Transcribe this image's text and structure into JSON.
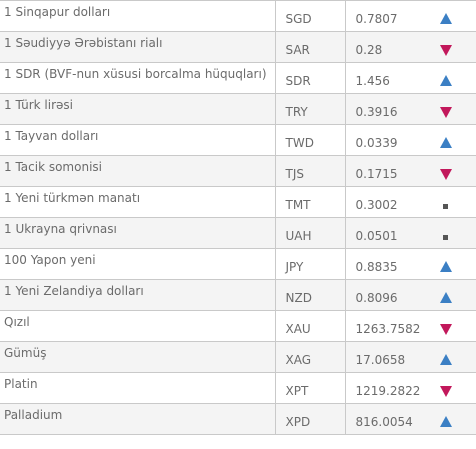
{
  "colors": {
    "up": "#3b7fc4",
    "down": "#c2185b",
    "neutral": "#555555"
  },
  "rows": [
    {
      "name": "1 Sinqapur dolları",
      "code": "SGD",
      "value": "0.7807",
      "trend": "up"
    },
    {
      "name": "1 Səudiyyə Ərəbistanı rialı",
      "code": "SAR",
      "value": "0.28",
      "trend": "down"
    },
    {
      "name": "1 SDR (BVF-nun xüsusi borcalma hüquqları)",
      "code": "SDR",
      "value": "1.456",
      "trend": "up"
    },
    {
      "name": "1 Türk lirəsi",
      "code": "TRY",
      "value": "0.3916",
      "trend": "down"
    },
    {
      "name": "1 Tayvan dolları",
      "code": "TWD",
      "value": "0.0339",
      "trend": "up"
    },
    {
      "name": "1 Tacik somonisi",
      "code": "TJS",
      "value": "0.1715",
      "trend": "down"
    },
    {
      "name": "1 Yeni türkmən manatı",
      "code": "TMT",
      "value": "0.3002",
      "trend": "neutral"
    },
    {
      "name": "1 Ukrayna qrivnası",
      "code": "UAH",
      "value": "0.0501",
      "trend": "neutral"
    },
    {
      "name": "100 Yapon yeni",
      "code": "JPY",
      "value": "0.8835",
      "trend": "up"
    },
    {
      "name": "1 Yeni Zelandiya dolları",
      "code": "NZD",
      "value": "0.8096",
      "trend": "up"
    },
    {
      "name": "Qızıl",
      "code": "XAU",
      "value": "1263.7582",
      "trend": "down"
    },
    {
      "name": "Gümüş",
      "code": "XAG",
      "value": "17.0658",
      "trend": "up"
    },
    {
      "name": "Platin",
      "code": "XPT",
      "value": "1219.2822",
      "trend": "down"
    },
    {
      "name": "Palladium",
      "code": "XPD",
      "value": "816.0054",
      "trend": "up"
    }
  ]
}
